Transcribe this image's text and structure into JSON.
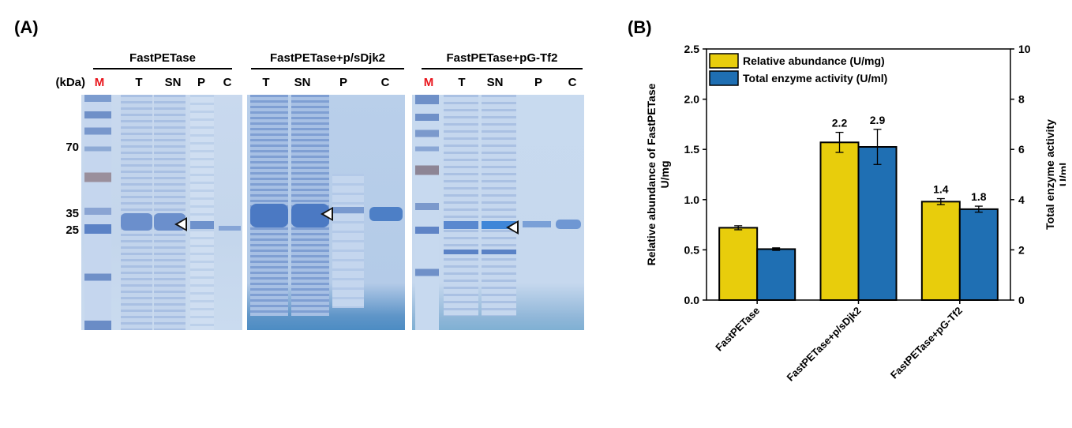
{
  "panelA": {
    "label": "(A)",
    "kda_label": "(kDa)",
    "mw_markers": [
      "70",
      "35",
      "25"
    ],
    "gels": [
      {
        "title": "FastPETase",
        "lanes": [
          "M",
          "T",
          "SN",
          "P",
          "C"
        ]
      },
      {
        "title": "FastPETase+p/sDjk2",
        "lanes": [
          "T",
          "SN",
          "P",
          "C"
        ]
      },
      {
        "title": "FastPETase+pG-Tf2",
        "lanes": [
          "M",
          "T",
          "SN",
          "P",
          "C"
        ]
      }
    ],
    "marker_lane_color": "#e8141b"
  },
  "panelB": {
    "label": "(B)"
  },
  "chart_data": {
    "type": "bar",
    "categories": [
      "FastPETase",
      "FastPETase+p/sDjk2",
      "FastPETase+pG-Tf2"
    ],
    "series": [
      {
        "name": "Relative abundance (U/mg)",
        "axis": "left",
        "color": "#e8cd0c",
        "values": [
          0.72,
          1.57,
          0.98
        ],
        "errors": [
          0.02,
          0.1,
          0.03
        ],
        "labels": [
          "",
          "2.2",
          "1.4"
        ]
      },
      {
        "name": "Total enzyme activity (U/ml)",
        "axis": "right",
        "color": "#1f6fb3",
        "values": [
          2.03,
          6.1,
          3.62
        ],
        "errors": [
          0.05,
          0.7,
          0.12
        ],
        "labels": [
          "",
          "2.9",
          "1.8"
        ]
      }
    ],
    "ylabel_left": "Relative abundance of FastPETase",
    "ylabel_left_unit": "U/mg",
    "ylabel_right": "Total enzyme activity",
    "ylabel_right_unit": "U/ml",
    "ylim_left": [
      0,
      2.5
    ],
    "ylim_right": [
      0,
      10
    ],
    "yticks_left": [
      "0.0",
      "0.5",
      "1.0",
      "1.5",
      "2.0",
      "2.5"
    ],
    "yticks_right": [
      "0",
      "2",
      "4",
      "6",
      "8",
      "10"
    ],
    "legend_position": "top-left",
    "grid": false
  }
}
